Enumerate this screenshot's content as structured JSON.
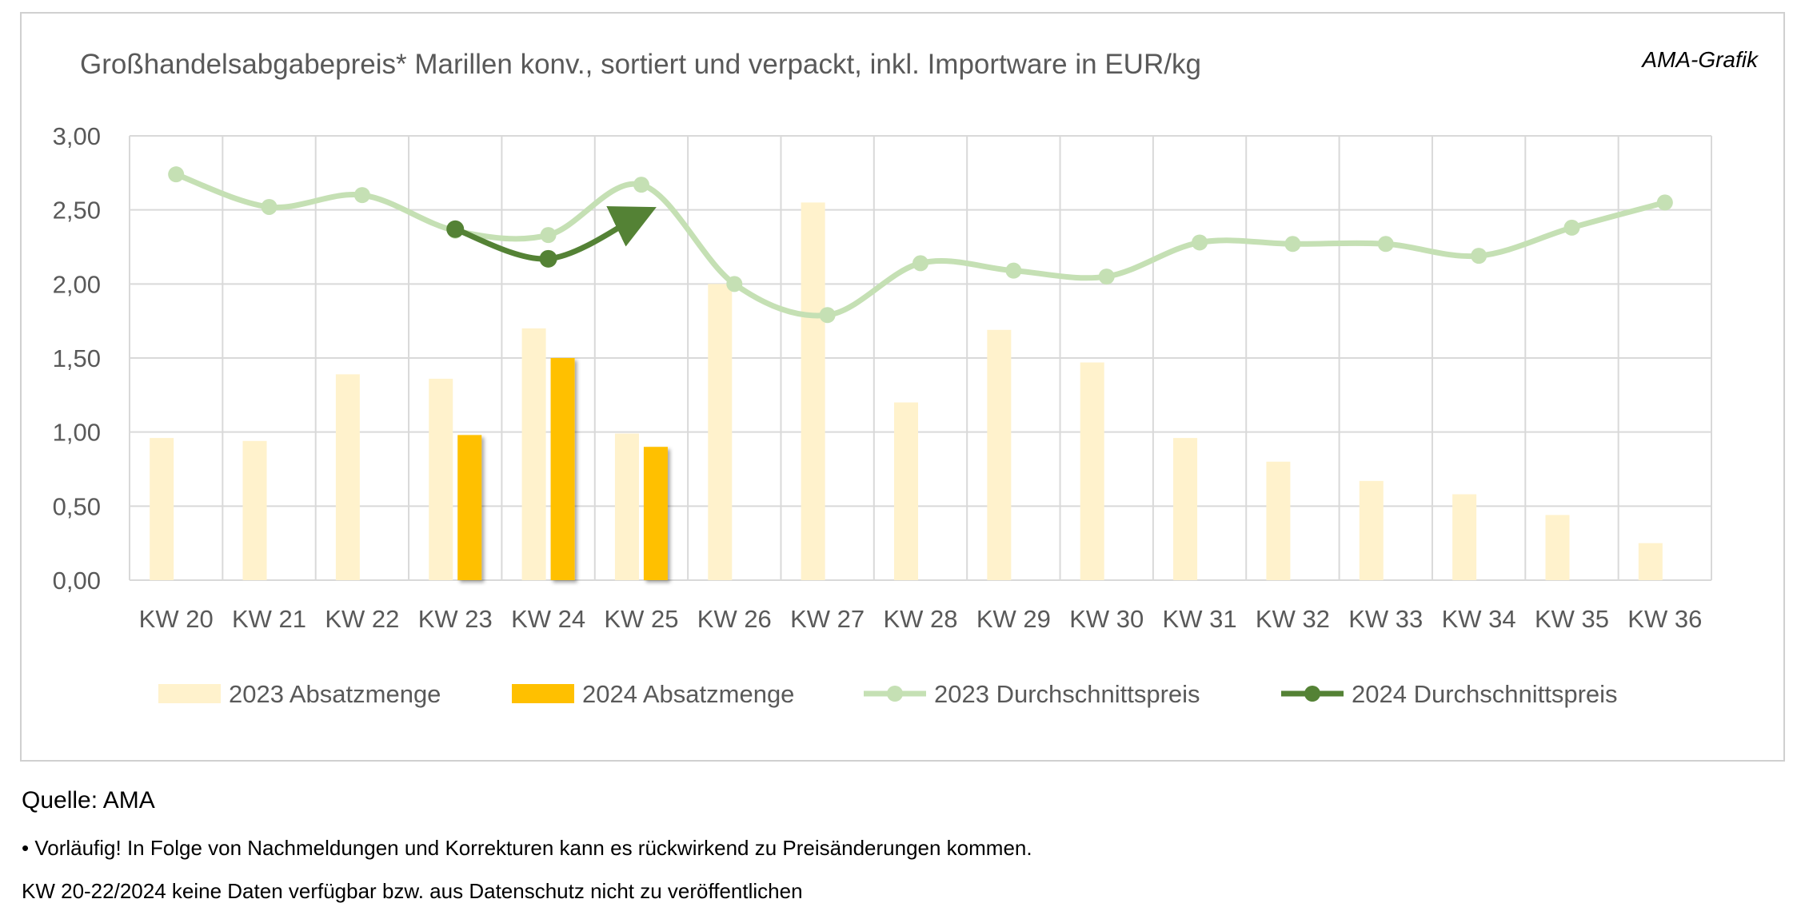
{
  "tag": "AMA-Grafik",
  "notes": {
    "source": "Quelle: AMA",
    "footnote": "• Vorläufig! In Folge von Nachmeldungen und Korrekturen kann es rückwirkend zu Preisänderungen kommen.",
    "data_note": "KW 20-22/2024 keine Daten verfügbar bzw. aus Datenschutz nicht zu veröffentlichen"
  },
  "colors": {
    "bar_2023": "#fff2cc",
    "bar_2024": "#ffc000",
    "line_2023": "#c5e0b4",
    "line_2024": "#548235",
    "grid": "#d9d9d9",
    "text": "#595959"
  },
  "chart_data": {
    "type": "bar",
    "title": "Großhandelsabgabepreis* Marillen konv., sortiert und verpackt, inkl. Importware in EUR/kg",
    "categories": [
      "KW 20",
      "KW 21",
      "KW 22",
      "KW 23",
      "KW 24",
      "KW 25",
      "KW 26",
      "KW 27",
      "KW 28",
      "KW 29",
      "KW 30",
      "KW 31",
      "KW 32",
      "KW 33",
      "KW 34",
      "KW 35",
      "KW 36"
    ],
    "ylim": [
      0,
      3
    ],
    "yticks": [
      "0,00",
      "0,50",
      "1,00",
      "1,50",
      "2,00",
      "2,50",
      "3,00"
    ],
    "grid": true,
    "legend_position": "bottom",
    "series": [
      {
        "name": "2023 Absatzmenge",
        "kind": "bar",
        "values": [
          0.96,
          0.94,
          1.39,
          1.36,
          1.7,
          0.99,
          2.0,
          2.55,
          1.2,
          1.69,
          1.47,
          0.96,
          0.8,
          0.67,
          0.58,
          0.44,
          0.25
        ]
      },
      {
        "name": "2024 Absatzmenge",
        "kind": "bar",
        "values": [
          null,
          null,
          null,
          0.98,
          1.5,
          0.9,
          null,
          null,
          null,
          null,
          null,
          null,
          null,
          null,
          null,
          null,
          null
        ]
      },
      {
        "name": "2023 Durchschnittspreis",
        "kind": "line",
        "values": [
          2.74,
          2.52,
          2.6,
          2.36,
          2.33,
          2.67,
          2.0,
          1.79,
          2.14,
          2.09,
          2.05,
          2.28,
          2.27,
          2.27,
          2.19,
          2.38,
          2.55
        ]
      },
      {
        "name": "2024 Durchschnittspreis",
        "kind": "line",
        "values": [
          null,
          null,
          null,
          2.37,
          2.17,
          2.47,
          null,
          null,
          null,
          null,
          null,
          null,
          null,
          null,
          null,
          null,
          null
        ]
      }
    ]
  }
}
